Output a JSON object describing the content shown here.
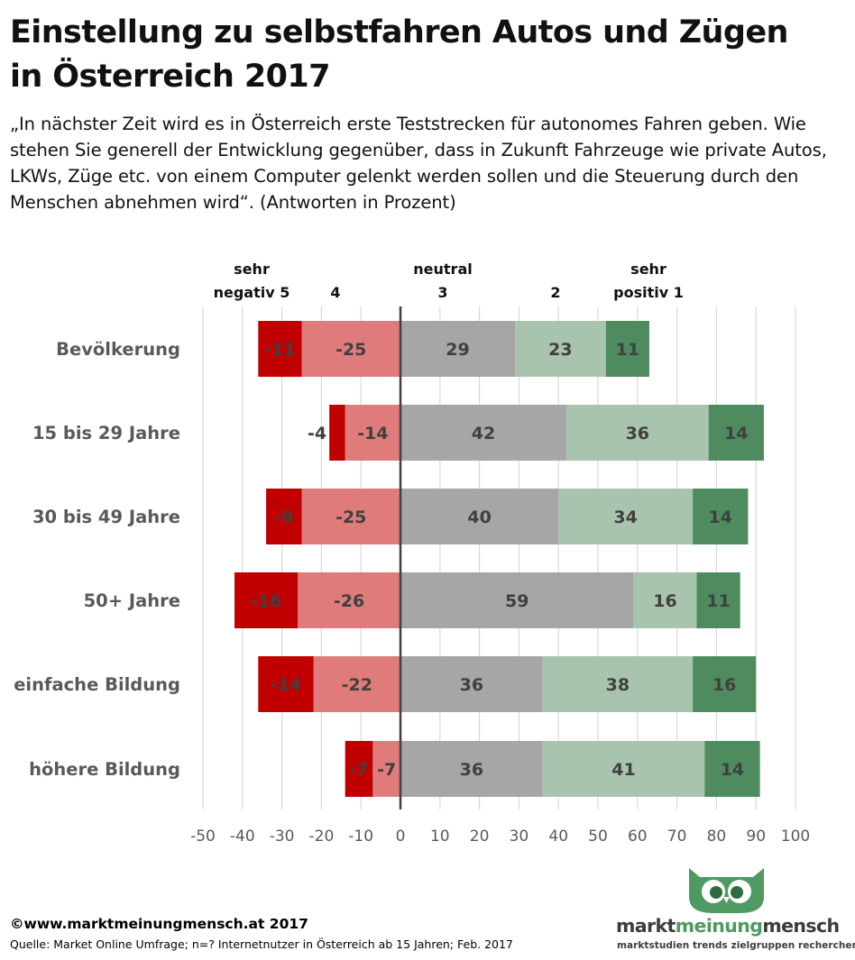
{
  "title": "Einstellung zu selbstfahren Autos und Zügen in Österreich 2017",
  "subtitle": "„In nächster Zeit wird es in Österreich erste Teststrecken für autonomes Fahren geben. Wie stehen Sie generell der Entwicklung gegenüber, dass in Zukunft Fahrzeuge wie private Autos, LKWs, Züge etc. von einem Computer gelenkt werden sollen und die Steuerung durch den Menschen abnehmen wird“. (Antworten in Prozent)",
  "chart_data": {
    "type": "bar",
    "orientation": "horizontal",
    "stacked": true,
    "diverging": true,
    "categories": [
      "Bevölkerung",
      "15 bis 29 Jahre",
      "30 bis 49 Jahre",
      "50+ Jahre",
      "einfache Bildung",
      "höhere Bildung"
    ],
    "series": [
      {
        "name": "sehr negativ 5",
        "header_lines": [
          "sehr",
          "negativ 5"
        ],
        "color": "#c00000",
        "values": [
          -11,
          -4,
          -9,
          -16,
          -14,
          -7
        ]
      },
      {
        "name": "4",
        "header_lines": [
          "",
          "4"
        ],
        "color": "#e07b7b",
        "values": [
          -25,
          -14,
          -25,
          -26,
          -22,
          -7
        ]
      },
      {
        "name": "neutral 3",
        "header_lines": [
          "neutral",
          "3"
        ],
        "color": "#a6a6a6",
        "values": [
          29,
          42,
          40,
          59,
          36,
          36
        ]
      },
      {
        "name": "2",
        "header_lines": [
          "",
          "2"
        ],
        "color": "#a8c4ae",
        "values": [
          23,
          36,
          34,
          16,
          38,
          41
        ]
      },
      {
        "name": "sehr positiv 1",
        "header_lines": [
          "sehr",
          "positiv 1"
        ],
        "color": "#4e8c5f",
        "values": [
          11,
          14,
          14,
          11,
          16,
          14
        ]
      }
    ],
    "xlim": [
      -50,
      100
    ],
    "xticks": [
      "-50",
      "-40",
      "-30",
      "-20",
      "-10",
      "0",
      "10",
      "20",
      "30",
      "40",
      "50",
      "60",
      "70",
      "80",
      "90",
      "100"
    ],
    "grid": true,
    "legend": "top"
  },
  "footer": {
    "copyright": "©www.marktmeinungmensch.at 2017",
    "source": "Quelle: Market Online Umfrage; n=? Internetnutzer in Österreich ab 15 Jahren; Feb. 2017"
  },
  "logo": {
    "word1": "markt",
    "word2": "meinung",
    "word3": "mensch",
    "tagline": "marktstudien trends zielgruppen recherchen",
    "color": "#4e9a62"
  }
}
